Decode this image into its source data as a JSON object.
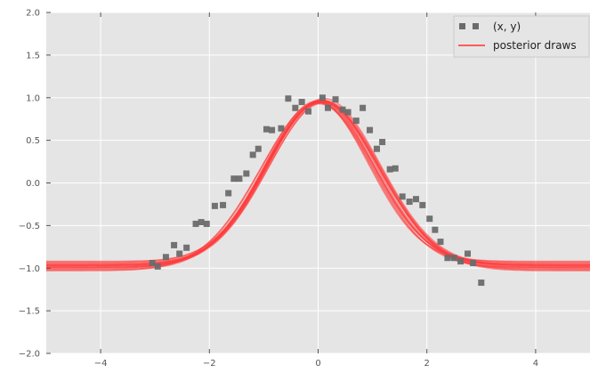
{
  "chart_data": {
    "type": "scatter",
    "title": "",
    "xlabel": "",
    "ylabel": "",
    "xlim": [
      -5,
      5
    ],
    "ylim": [
      -2.0,
      2.0
    ],
    "grid": true,
    "background": "#e5e5e5",
    "legend_position": "top-right",
    "x_ticks": [
      -4,
      -2,
      0,
      2,
      4
    ],
    "x_tick_labels": [
      "−4",
      "−2",
      "0",
      "2",
      "4"
    ],
    "y_ticks": [
      2.0,
      1.5,
      1.0,
      0.5,
      0.0,
      -0.5,
      -1.0,
      -1.5,
      -2.0
    ],
    "y_tick_labels": [
      "2.0",
      "1.5",
      "1.0",
      "0.5",
      "0.0",
      "−0.5",
      "−1.0",
      "−1.5",
      "−2.0"
    ],
    "legend": [
      {
        "label": "(x, y)",
        "marker": "square",
        "color": "#6b6b6b"
      },
      {
        "label": "posterior draws",
        "marker": "line",
        "color": "#ff3b3b"
      }
    ],
    "series": [
      {
        "name": "(x, y)",
        "kind": "points",
        "color": "#6b6b6b",
        "points": [
          [
            -3.05,
            -0.94
          ],
          [
            -2.95,
            -0.98
          ],
          [
            -2.8,
            -0.87
          ],
          [
            -2.65,
            -0.73
          ],
          [
            -2.55,
            -0.83
          ],
          [
            -2.42,
            -0.76
          ],
          [
            -2.25,
            -0.48
          ],
          [
            -2.15,
            -0.46
          ],
          [
            -2.05,
            -0.48
          ],
          [
            -1.9,
            -0.27
          ],
          [
            -1.75,
            -0.26
          ],
          [
            -1.65,
            -0.12
          ],
          [
            -1.55,
            0.05
          ],
          [
            -1.45,
            0.05
          ],
          [
            -1.32,
            0.11
          ],
          [
            -1.2,
            0.33
          ],
          [
            -1.1,
            0.4
          ],
          [
            -0.95,
            0.63
          ],
          [
            -0.85,
            0.62
          ],
          [
            -0.68,
            0.64
          ],
          [
            -0.55,
            0.99
          ],
          [
            -0.42,
            0.88
          ],
          [
            -0.3,
            0.95
          ],
          [
            -0.18,
            0.84
          ],
          [
            0.08,
            1.0
          ],
          [
            0.18,
            0.88
          ],
          [
            0.32,
            0.98
          ],
          [
            0.45,
            0.86
          ],
          [
            0.55,
            0.83
          ],
          [
            0.7,
            0.73
          ],
          [
            0.82,
            0.88
          ],
          [
            0.95,
            0.62
          ],
          [
            1.08,
            0.4
          ],
          [
            1.18,
            0.48
          ],
          [
            1.32,
            0.16
          ],
          [
            1.42,
            0.17
          ],
          [
            1.55,
            -0.16
          ],
          [
            1.68,
            -0.22
          ],
          [
            1.8,
            -0.19
          ],
          [
            1.92,
            -0.26
          ],
          [
            2.05,
            -0.42
          ],
          [
            2.15,
            -0.55
          ],
          [
            2.25,
            -0.69
          ],
          [
            2.38,
            -0.88
          ],
          [
            2.5,
            -0.88
          ],
          [
            2.62,
            -0.92
          ],
          [
            2.75,
            -0.83
          ],
          [
            2.85,
            -0.94
          ],
          [
            3.0,
            -1.17
          ]
        ]
      },
      {
        "name": "posterior draws",
        "kind": "curves",
        "model": "y = b + a * exp(-(x - m)^2 / (2 * s^2))",
        "color": "#ff3b3b",
        "draws": [
          {
            "b": -0.97,
            "a": 1.92,
            "m": 0.04,
            "s": 1.0
          },
          {
            "b": -0.95,
            "a": 1.89,
            "m": 0.0,
            "s": 0.97
          },
          {
            "b": -0.99,
            "a": 1.96,
            "m": 0.08,
            "s": 1.03
          },
          {
            "b": -0.93,
            "a": 1.87,
            "m": 0.02,
            "s": 0.98
          },
          {
            "b": -1.01,
            "a": 1.98,
            "m": 0.06,
            "s": 1.05
          },
          {
            "b": -0.96,
            "a": 1.9,
            "m": 0.1,
            "s": 1.01
          },
          {
            "b": -1.03,
            "a": 1.99,
            "m": 0.03,
            "s": 1.08
          },
          {
            "b": -0.92,
            "a": 1.88,
            "m": -0.02,
            "s": 0.95
          },
          {
            "b": -0.98,
            "a": 1.94,
            "m": 0.12,
            "s": 1.02
          },
          {
            "b": -1.0,
            "a": 1.95,
            "m": 0.0,
            "s": 1.04
          },
          {
            "b": -0.96,
            "a": 1.93,
            "m": 0.07,
            "s": 0.99
          },
          {
            "b": -1.02,
            "a": 1.97,
            "m": 0.09,
            "s": 1.06
          },
          {
            "b": -0.94,
            "a": 1.9,
            "m": 0.05,
            "s": 0.97
          },
          {
            "b": -0.99,
            "a": 1.92,
            "m": 0.01,
            "s": 1.0
          },
          {
            "b": -0.97,
            "a": 1.96,
            "m": 0.11,
            "s": 1.03
          }
        ]
      }
    ]
  }
}
